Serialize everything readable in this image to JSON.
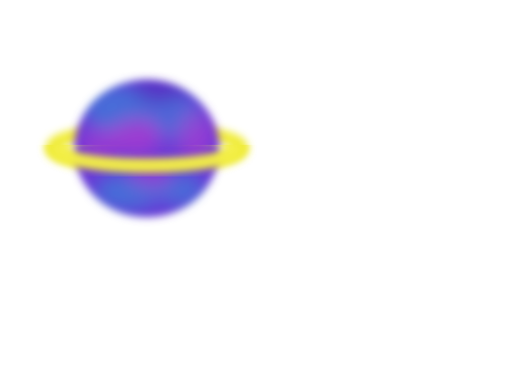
{
  "canvas": {
    "background": "#ffffff"
  },
  "drawing": {
    "subject": "planet-with-ring",
    "colors": {
      "planet_base": "#6a38d6",
      "planet_blue": "#3a7fd8",
      "planet_magenta": "#b43ad0",
      "planet_deep": "#4a2bb8",
      "ring": "#f0ec3a",
      "ring_highlight": "#fbf66a"
    }
  }
}
